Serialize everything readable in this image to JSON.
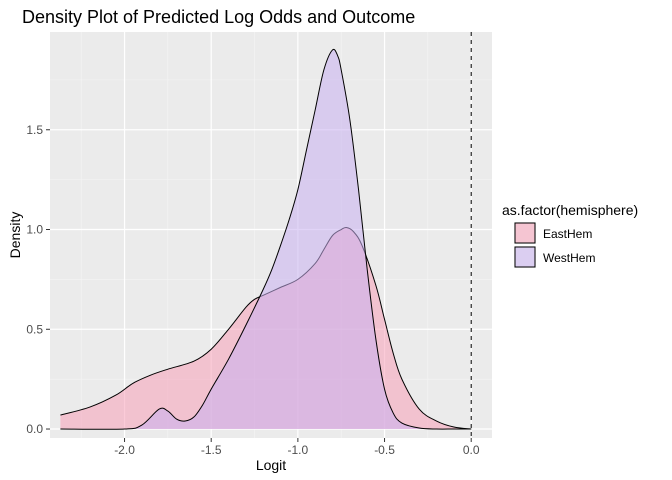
{
  "chart_data": {
    "type": "area",
    "title": "Density Plot of Predicted Log Odds and Outcome",
    "xlabel": "Logit",
    "ylabel": "Density",
    "xlim": [
      -2.43,
      0.12
    ],
    "ylim": [
      -0.045,
      1.99
    ],
    "x_ticks": [
      -2.0,
      -1.5,
      -1.0,
      -0.5,
      0.0
    ],
    "x_tick_labels": [
      "-2.0",
      "-1.5",
      "-1.0",
      "-0.5",
      "0.0"
    ],
    "y_ticks": [
      0.0,
      0.5,
      1.0,
      1.5
    ],
    "y_tick_labels": [
      "0.0",
      "0.5",
      "1.0",
      "1.5"
    ],
    "grid": true,
    "vline": {
      "x": 0.0,
      "style": "dashed"
    },
    "legend": {
      "title": "as.factor(hemisphere)",
      "placement": "right"
    },
    "series": [
      {
        "name": "EastHem",
        "color": "#f8a0b8",
        "x": [
          -2.37,
          -2.2,
          -2.05,
          -1.95,
          -1.85,
          -1.75,
          -1.6,
          -1.5,
          -1.4,
          -1.3,
          -1.25,
          -1.2,
          -1.1,
          -1.0,
          -0.9,
          -0.85,
          -0.8,
          -0.75,
          -0.72,
          -0.68,
          -0.63,
          -0.55,
          -0.5,
          -0.45,
          -0.4,
          -0.3,
          -0.2,
          -0.1,
          0.0
        ],
        "y": [
          0.07,
          0.11,
          0.17,
          0.23,
          0.27,
          0.3,
          0.34,
          0.4,
          0.5,
          0.61,
          0.65,
          0.67,
          0.71,
          0.75,
          0.83,
          0.9,
          0.97,
          1.0,
          1.01,
          0.99,
          0.92,
          0.72,
          0.55,
          0.38,
          0.25,
          0.1,
          0.04,
          0.01,
          0.0
        ]
      },
      {
        "name": "WestHem",
        "color": "#c8b0f0",
        "x": [
          -2.37,
          -2.0,
          -1.9,
          -1.8,
          -1.75,
          -1.7,
          -1.65,
          -1.6,
          -1.55,
          -1.5,
          -1.4,
          -1.3,
          -1.2,
          -1.15,
          -1.1,
          -1.05,
          -1.0,
          -0.95,
          -0.9,
          -0.85,
          -0.8,
          -0.77,
          -0.75,
          -0.7,
          -0.65,
          -0.6,
          -0.55,
          -0.5,
          -0.45,
          -0.4,
          -0.3,
          -0.2,
          -0.1,
          0.0
        ],
        "y": [
          0.0,
          0.0,
          0.02,
          0.1,
          0.09,
          0.05,
          0.04,
          0.06,
          0.12,
          0.2,
          0.35,
          0.52,
          0.7,
          0.8,
          0.92,
          1.05,
          1.2,
          1.4,
          1.6,
          1.8,
          1.9,
          1.87,
          1.8,
          1.55,
          1.2,
          0.8,
          0.45,
          0.2,
          0.08,
          0.03,
          0.005,
          0.0,
          0.0,
          0.0
        ]
      }
    ]
  }
}
